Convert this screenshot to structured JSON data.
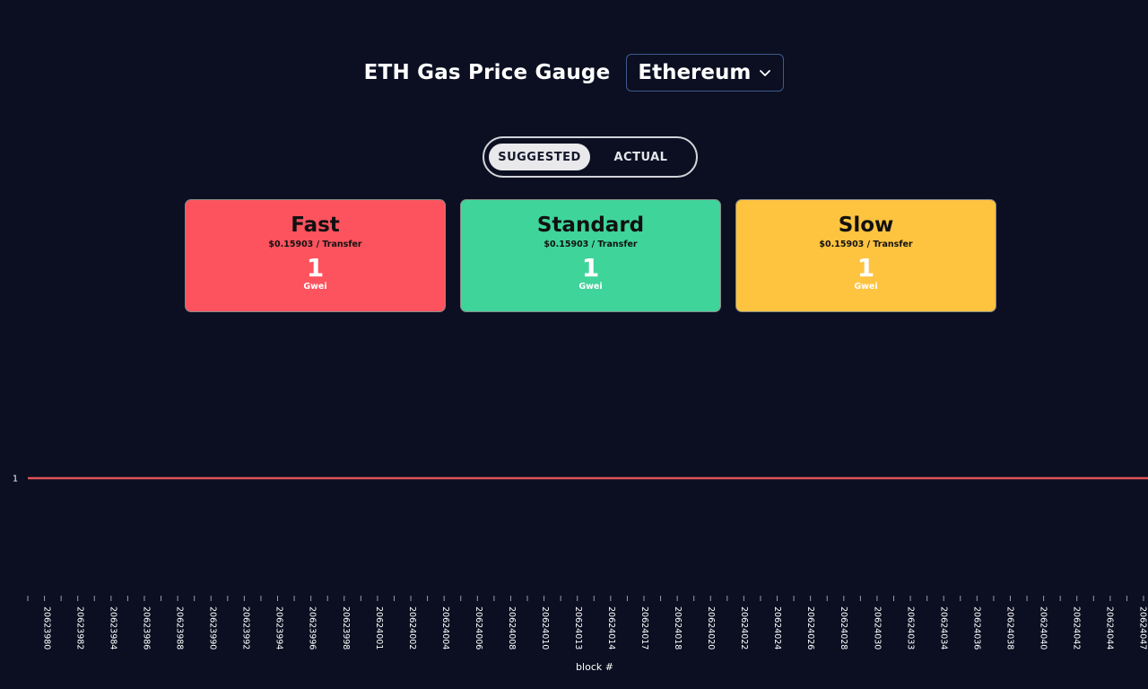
{
  "header": {
    "title": "ETH Gas Price Gauge",
    "network": "Ethereum",
    "network_icon": "chevron-down-icon"
  },
  "toggle": {
    "options": [
      "SUGGESTED",
      "ACTUAL"
    ],
    "selected": "SUGGESTED"
  },
  "cards": [
    {
      "title": "Fast",
      "cost": "$0.15903 / Transfer",
      "value": "1",
      "unit": "Gwei",
      "color": "#fc535e"
    },
    {
      "title": "Standard",
      "cost": "$0.15903 / Transfer",
      "value": "1",
      "unit": "Gwei",
      "color": "#3fd49a"
    },
    {
      "title": "Slow",
      "cost": "$0.15903 / Transfer",
      "value": "1",
      "unit": "Gwei",
      "color": "#fec33f"
    }
  ],
  "chart_data": {
    "type": "line",
    "xlabel": "block #",
    "x": [
      "20623980",
      "20623982",
      "20623984",
      "20623986",
      "20623988",
      "20623990",
      "20623992",
      "20623994",
      "20623996",
      "20623998",
      "20624001",
      "20624002",
      "20624004",
      "20624006",
      "20624008",
      "20624010",
      "20624013",
      "20624014",
      "20624017",
      "20624018",
      "20624020",
      "20624022",
      "20624024",
      "20624026",
      "20624028",
      "20624030",
      "20624033",
      "20624034",
      "20624036",
      "20624038",
      "20624040",
      "20624042",
      "20624044",
      "20624047"
    ],
    "yticks": [
      "1"
    ],
    "series": [
      {
        "color": "#e05357",
        "values": [
          1,
          1,
          1,
          1,
          1,
          1,
          1,
          1,
          1,
          1,
          1,
          1,
          1,
          1,
          1,
          1,
          1,
          1,
          1,
          1,
          1,
          1,
          1,
          1,
          1,
          1,
          1,
          1,
          1,
          1,
          1,
          1,
          1,
          1
        ]
      }
    ]
  }
}
